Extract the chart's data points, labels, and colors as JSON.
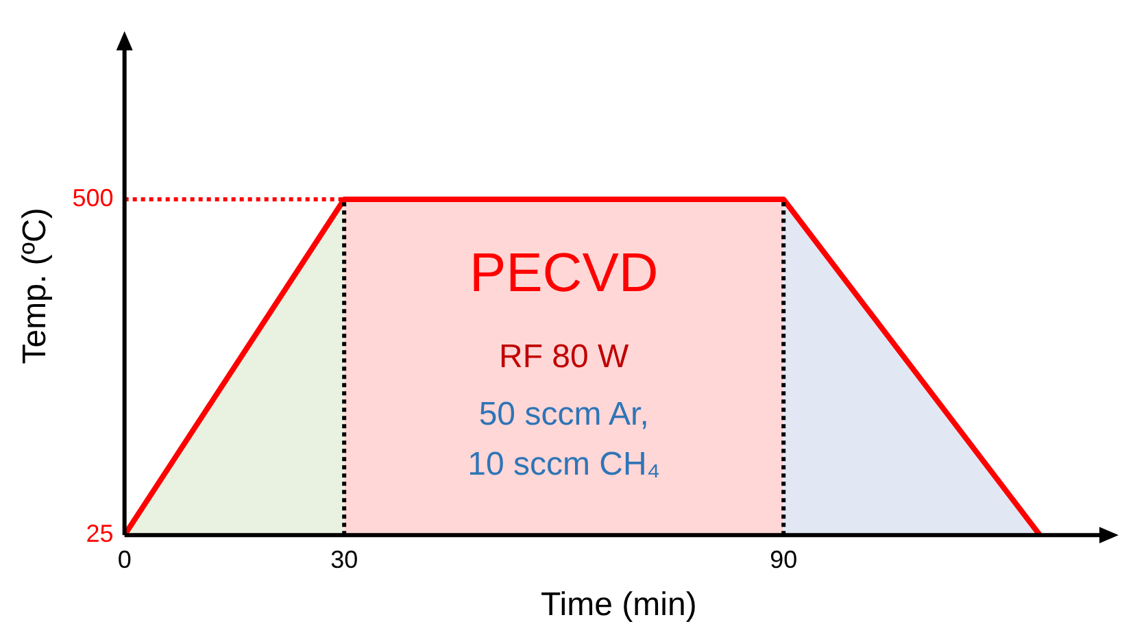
{
  "chart_data": {
    "type": "line",
    "xlabel": "Time (min)",
    "ylabel": "Temp. (ºC)",
    "xlim": [
      0,
      135
    ],
    "xticks": [
      0,
      30,
      90
    ],
    "ylim": [
      25,
      730
    ],
    "yticks": [
      25,
      500
    ],
    "grid": false,
    "legend": false,
    "marker": "none",
    "series": [
      {
        "type": "area",
        "color": "#e9f1e1",
        "x": [
          0,
          30
        ],
        "values": [
          25,
          500
        ]
      },
      {
        "type": "area",
        "color": "#ffd7d7",
        "x": [
          30,
          90
        ],
        "values": [
          500,
          500
        ]
      },
      {
        "type": "area",
        "color": "#e1e8f4",
        "x": [
          90,
          125
        ],
        "values": [
          500,
          25
        ]
      },
      {
        "color": "#ff0000",
        "x": [
          0,
          30,
          90,
          125
        ],
        "values": [
          25,
          500,
          500,
          25
        ],
        "line_style": "solid"
      }
    ],
    "ref_lines": [
      {
        "axis": "y",
        "value": 500,
        "color": "#ff0000",
        "line_style": "dotted"
      },
      {
        "axis": "x",
        "value": 30,
        "color": "#000000",
        "line_style": "dotted"
      },
      {
        "axis": "x",
        "value": 90,
        "color": "#000000",
        "line_style": "dotted"
      }
    ],
    "annotations": [
      "PECVD",
      "RF 80 W",
      "50 sccm Ar,",
      "10 sccm CH₄"
    ]
  }
}
